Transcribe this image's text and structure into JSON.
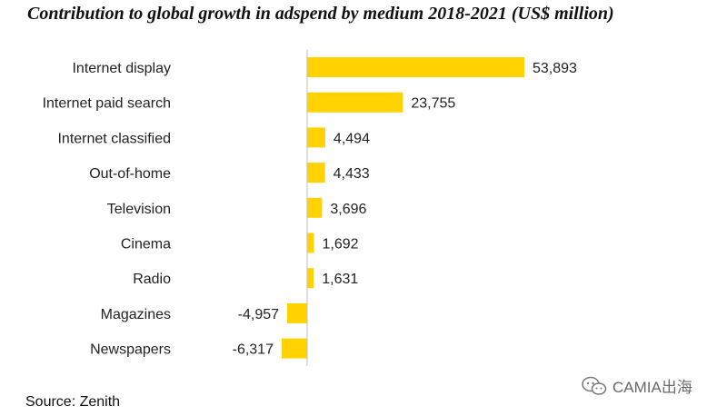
{
  "chart_data": {
    "type": "bar",
    "orientation": "horizontal",
    "title": "Contribution to global growth in adspend by medium 2018-2021 (US$ million)",
    "categories": [
      "Internet display",
      "Internet paid search",
      "Internet classified",
      "Out-of-home",
      "Television",
      "Cinema",
      "Radio",
      "Magazines",
      "Newspapers"
    ],
    "values": [
      53893,
      23755,
      4494,
      4433,
      3696,
      1692,
      1631,
      -4957,
      -6317
    ],
    "value_labels": [
      "53,893",
      "23,755",
      "4,494",
      "4,433",
      "3,696",
      "1,692",
      "1,631",
      "-4,957",
      "-6,317"
    ],
    "bar_color": "#FFD200",
    "xlim": [
      -8000,
      57000
    ],
    "grid": false,
    "legend": "none"
  },
  "source": "Source: Zenith",
  "watermark": {
    "text": "CAMIA出海",
    "icon": "wechat-icon"
  }
}
